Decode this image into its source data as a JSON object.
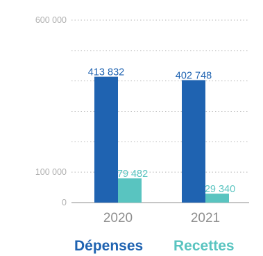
{
  "chart_data": {
    "type": "bar",
    "categories": [
      "2020",
      "2021"
    ],
    "series": [
      {
        "name": "Dépenses",
        "values": [
          413832,
          402748
        ],
        "color": "#1f63b1"
      },
      {
        "name": "Recettes",
        "values": [
          79482,
          29340
        ],
        "color": "#59c4c0"
      }
    ],
    "data_labels": {
      "Dépenses": [
        "413 832",
        "402 748"
      ],
      "Recettes": [
        "79 482",
        "29 340"
      ]
    },
    "y_tick_labels": [
      "600 000",
      "100 000",
      "0"
    ],
    "ylim": [
      0,
      600000
    ],
    "grid": "dotted horizontal",
    "legend_placement": "bottom",
    "colors": {
      "axis_text": "#b0b0b0",
      "category_text": "#8f8f8f",
      "depenses": "#1f63b1",
      "recettes": "#59c4c0"
    }
  }
}
